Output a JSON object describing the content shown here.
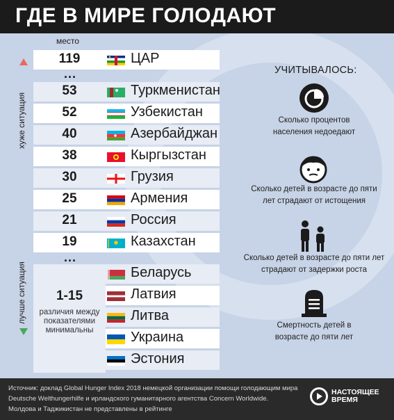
{
  "title": "ГДЕ В МИРЕ ГОЛОДАЮТ",
  "place_label": "место",
  "worse_label": "хуже ситуация",
  "better_label": "лучше ситуация",
  "dots": "...",
  "ranked": [
    {
      "rank": "119",
      "country": "ЦАР",
      "flag": "car-flag"
    },
    {
      "rank": "53",
      "country": "Туркменистан",
      "flag": "turkmenistan-flag"
    },
    {
      "rank": "52",
      "country": "Узбекистан",
      "flag": "uzbekistan-flag"
    },
    {
      "rank": "40",
      "country": "Азербайджан",
      "flag": "azerbaijan-flag"
    },
    {
      "rank": "38",
      "country": "Кыргызстан",
      "flag": "kyrgyzstan-flag"
    },
    {
      "rank": "30",
      "country": "Грузия",
      "flag": "georgia-flag"
    },
    {
      "rank": "25",
      "country": "Армения",
      "flag": "armenia-flag"
    },
    {
      "rank": "21",
      "country": "Россия",
      "flag": "russia-flag"
    },
    {
      "rank": "19",
      "country": "Казахстан",
      "flag": "kazakhstan-flag"
    }
  ],
  "group": {
    "rank": "1-15",
    "note": "различия между показателями минимальны",
    "countries": [
      {
        "country": "Беларусь",
        "flag": "belarus-flag"
      },
      {
        "country": "Латвия",
        "flag": "latvia-flag"
      },
      {
        "country": "Литва",
        "flag": "lithuania-flag"
      },
      {
        "country": "Украина",
        "flag": "ukraine-flag"
      },
      {
        "country": "Эстония",
        "flag": "estonia-flag"
      }
    ]
  },
  "factors_title": "УЧИТЫВАЛОСЬ:",
  "factors": [
    {
      "icon": "pie-chart-icon",
      "text1": "Сколько процентов",
      "text2": "населения недоедают"
    },
    {
      "icon": "child-face-icon",
      "text1": "Сколько детей в возрасте до пяти",
      "text2": "лет страдают от истощения"
    },
    {
      "icon": "children-icon",
      "text1": "Сколько детей в возрасте до пяти лет",
      "text2": "страдают от задержки роста"
    },
    {
      "icon": "gravestone-icon",
      "text1": "Смертность детей в",
      "text2": "возрасте до пяти лет"
    }
  ],
  "source": {
    "line1": "Источник: доклад Global Hunger Index 2018 немецкой организации помощи голодающим мира",
    "line2": "Deutsche Welthungerhilfe и ирландского гуманитарного агентства Concern Worldwide.",
    "line3": "Молдова и Таджикистан не представлены в рейтинге"
  },
  "logo": {
    "line1": "НАСТОЯЩЕЕ",
    "line2": "ВРЕМЯ"
  }
}
